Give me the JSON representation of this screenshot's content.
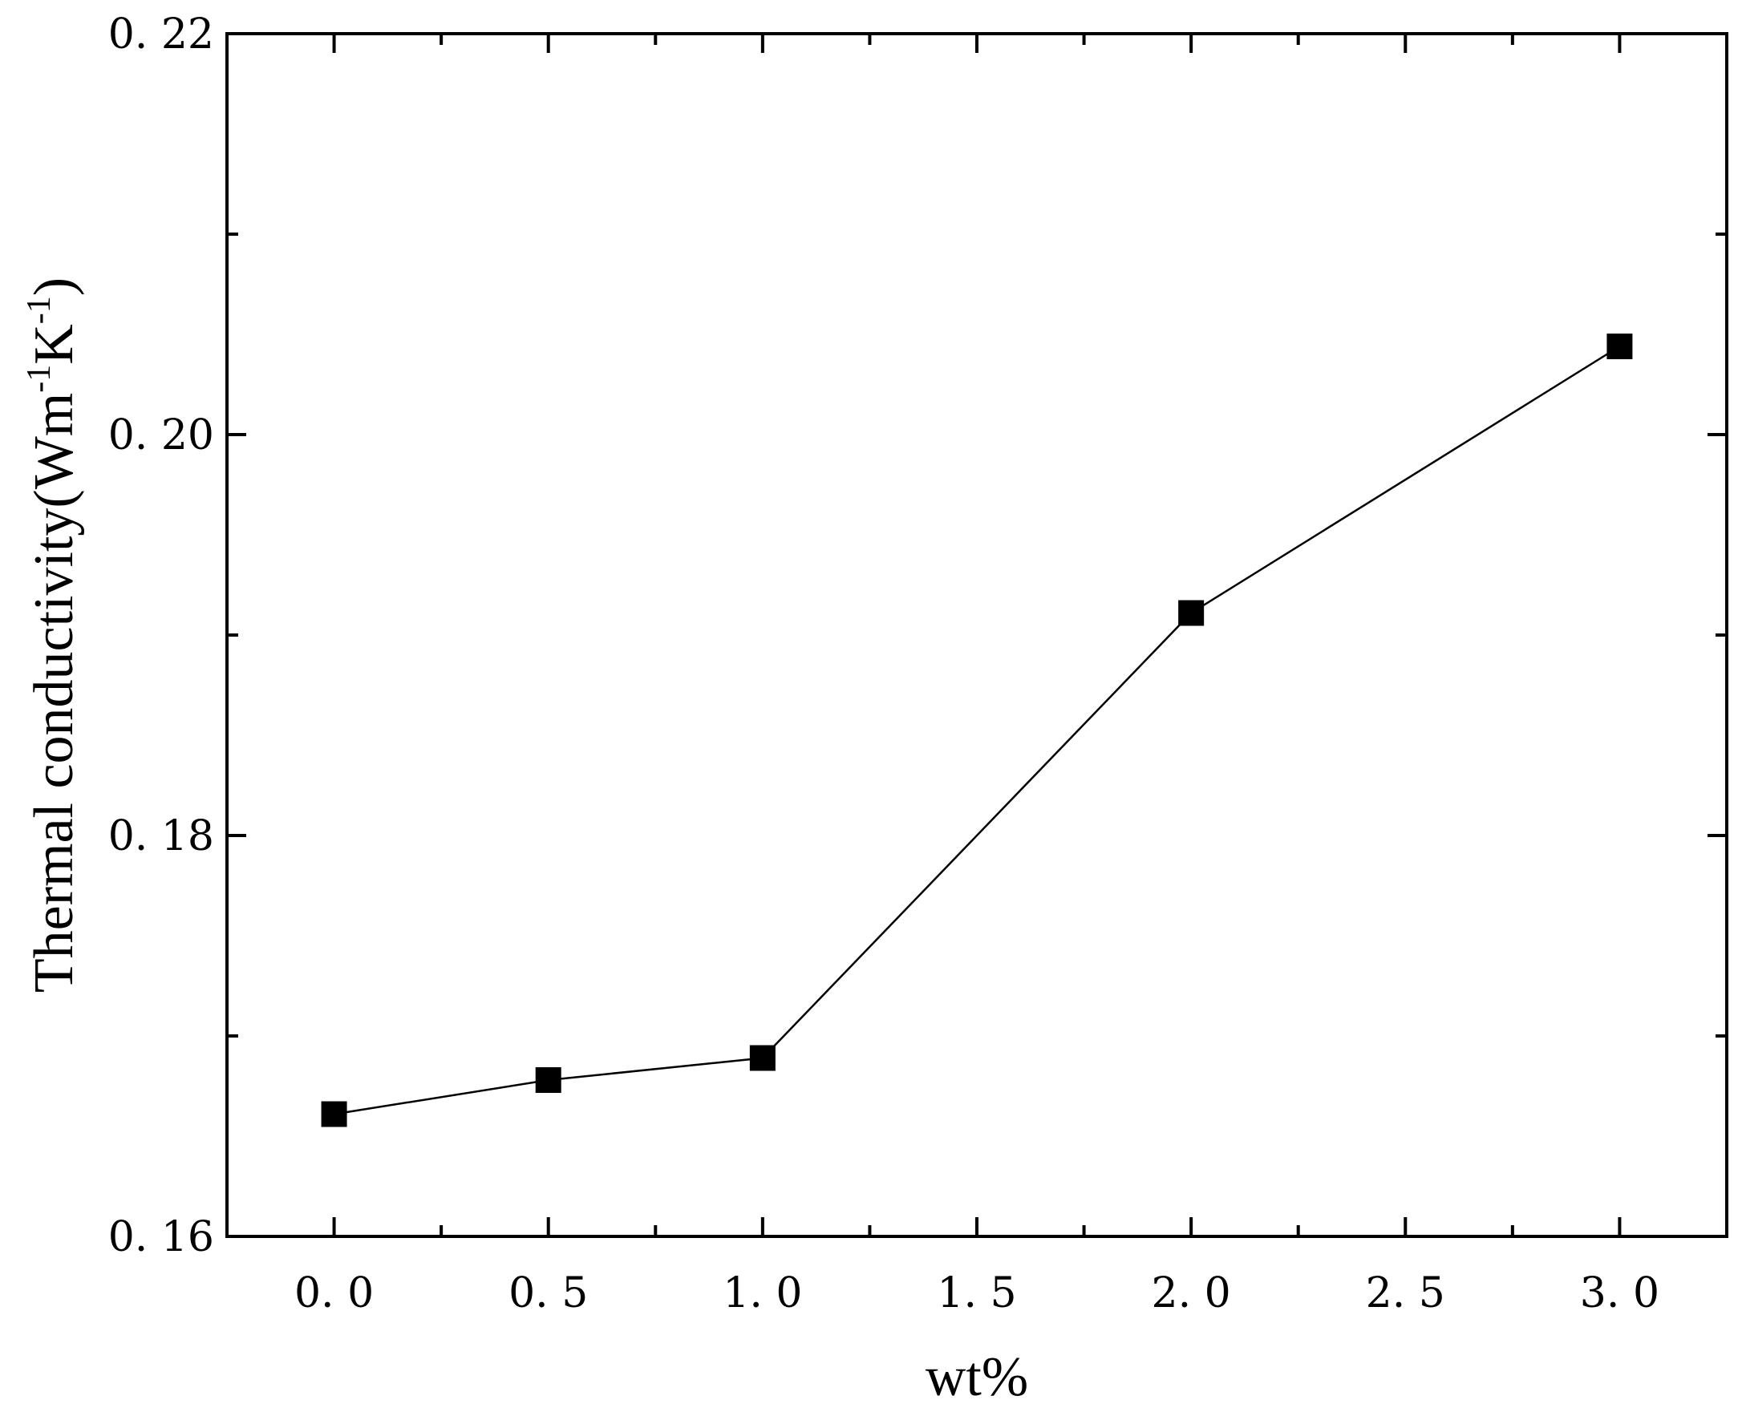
{
  "chart_data": {
    "type": "line",
    "title": "",
    "xlabel": "wt%",
    "ylabel": {
      "main": "Thermal conductivity(Wm",
      "sup1": "-1",
      "mid": "K",
      "sup2": "-1",
      "end": ")"
    },
    "xlim": [
      -0.25,
      3.25
    ],
    "ylim": [
      0.16,
      0.22
    ],
    "x_ticks": [
      0.0,
      0.5,
      1.0,
      1.5,
      2.0,
      2.5,
      3.0
    ],
    "x_tick_labels": [
      "0. 0",
      "0. 5",
      "1. 0",
      "1. 5",
      "2. 0",
      "2. 5",
      "3. 0"
    ],
    "x_minor_ticks": [
      0.25,
      0.75,
      1.25,
      1.75,
      2.25,
      2.75
    ],
    "y_ticks": [
      0.16,
      0.18,
      0.2,
      0.22
    ],
    "y_tick_labels": [
      "0. 16",
      "0. 18",
      "0. 20",
      "0. 22"
    ],
    "y_minor_ticks": [
      0.17,
      0.19,
      0.21
    ],
    "grid": false,
    "series": [
      {
        "marker": "square",
        "color": "#000000",
        "x": [
          0.0,
          0.5,
          1.0,
          2.0,
          3.0
        ],
        "y": [
          0.1661,
          0.1678,
          0.1689,
          0.1911,
          0.2044
        ]
      }
    ]
  }
}
